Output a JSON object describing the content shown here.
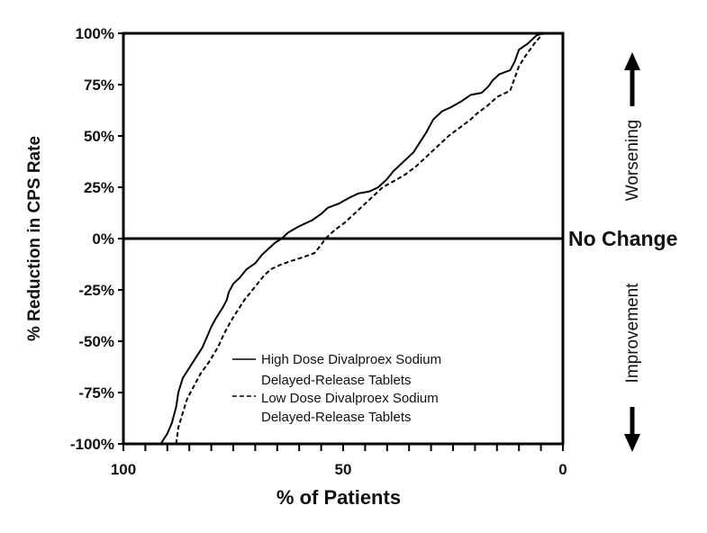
{
  "chart_data": {
    "type": "line",
    "xlabel": "% of Patients",
    "ylabel": "% Reduction in CPS Rate",
    "xlim": [
      100,
      0
    ],
    "ylim": [
      -100,
      100
    ],
    "x_ticks": [
      "100",
      "50",
      "0"
    ],
    "x_tick_values": [
      100,
      50,
      0
    ],
    "y_ticks": [
      "100%",
      "75%",
      "50%",
      "25%",
      "0%",
      "-25%",
      "-50%",
      "-75%",
      "-100%"
    ],
    "y_tick_values": [
      100,
      75,
      50,
      25,
      0,
      -25,
      -50,
      -75,
      -100
    ],
    "reference_line": {
      "y": 0,
      "label": "No Change"
    },
    "annotations": {
      "up": "Worsening",
      "down": "Improvement"
    },
    "legend_position": "bottom-center",
    "series": [
      {
        "name": "High Dose Divalproex Sodium Delayed-Release Tablets",
        "style": "solid",
        "color": "#000000",
        "points": [
          [
            91.5,
            -100
          ],
          [
            90,
            -95
          ],
          [
            89,
            -90
          ],
          [
            88,
            -82
          ],
          [
            87.5,
            -75
          ],
          [
            86.5,
            -68
          ],
          [
            85,
            -63
          ],
          [
            83.5,
            -58
          ],
          [
            82,
            -53
          ],
          [
            81,
            -48
          ],
          [
            80,
            -43
          ],
          [
            79,
            -39
          ],
          [
            77.5,
            -34
          ],
          [
            76.5,
            -30
          ],
          [
            76,
            -26
          ],
          [
            75,
            -22
          ],
          [
            73.5,
            -19
          ],
          [
            72,
            -15
          ],
          [
            70,
            -12
          ],
          [
            68.5,
            -8
          ],
          [
            67,
            -5
          ],
          [
            65.5,
            -2
          ],
          [
            64,
            0
          ],
          [
            62.5,
            3
          ],
          [
            60,
            6
          ],
          [
            57,
            9
          ],
          [
            55,
            12
          ],
          [
            53.5,
            15
          ],
          [
            51,
            17
          ],
          [
            48.5,
            20
          ],
          [
            46.5,
            22
          ],
          [
            44,
            23
          ],
          [
            42,
            25
          ],
          [
            40,
            29
          ],
          [
            38.5,
            33
          ],
          [
            36.5,
            37
          ],
          [
            34,
            42
          ],
          [
            32.5,
            47
          ],
          [
            31,
            52
          ],
          [
            29.5,
            58
          ],
          [
            27.5,
            62
          ],
          [
            25.5,
            64
          ],
          [
            23,
            67
          ],
          [
            21,
            70
          ],
          [
            18.5,
            71
          ],
          [
            17,
            74
          ],
          [
            16,
            77
          ],
          [
            14.5,
            80
          ],
          [
            12,
            82
          ],
          [
            11,
            86
          ],
          [
            10,
            92
          ],
          [
            8,
            95
          ],
          [
            6,
            99
          ],
          [
            4.5,
            100
          ]
        ]
      },
      {
        "name": "Low Dose Divalproex Sodium Delayed-Release Tablets",
        "style": "dashed",
        "color": "#000000",
        "points": [
          [
            88,
            -100
          ],
          [
            87.5,
            -92
          ],
          [
            86.5,
            -85
          ],
          [
            85.5,
            -78
          ],
          [
            84,
            -72
          ],
          [
            82.5,
            -66
          ],
          [
            80.5,
            -60
          ],
          [
            78.5,
            -53
          ],
          [
            77,
            -46
          ],
          [
            75.5,
            -40
          ],
          [
            74,
            -35
          ],
          [
            72.5,
            -30
          ],
          [
            71,
            -26
          ],
          [
            69.5,
            -22
          ],
          [
            68,
            -18
          ],
          [
            66.5,
            -15
          ],
          [
            64.5,
            -13
          ],
          [
            62,
            -11
          ],
          [
            59,
            -9
          ],
          [
            56.5,
            -7
          ],
          [
            55,
            -3
          ],
          [
            54,
            0
          ],
          [
            52,
            4
          ],
          [
            49.5,
            8
          ],
          [
            47.5,
            12
          ],
          [
            45.5,
            16
          ],
          [
            43,
            21
          ],
          [
            41,
            25
          ],
          [
            38.5,
            28
          ],
          [
            36,
            31
          ],
          [
            33.5,
            35
          ],
          [
            31.5,
            39
          ],
          [
            30,
            42
          ],
          [
            28,
            46
          ],
          [
            26,
            50
          ],
          [
            23.5,
            54
          ],
          [
            21,
            58
          ],
          [
            19.5,
            61
          ],
          [
            17,
            65
          ],
          [
            15,
            69
          ],
          [
            12,
            72
          ],
          [
            11,
            78
          ],
          [
            10,
            84
          ],
          [
            8.5,
            89
          ],
          [
            6.5,
            95
          ],
          [
            4.5,
            100
          ]
        ]
      }
    ]
  }
}
